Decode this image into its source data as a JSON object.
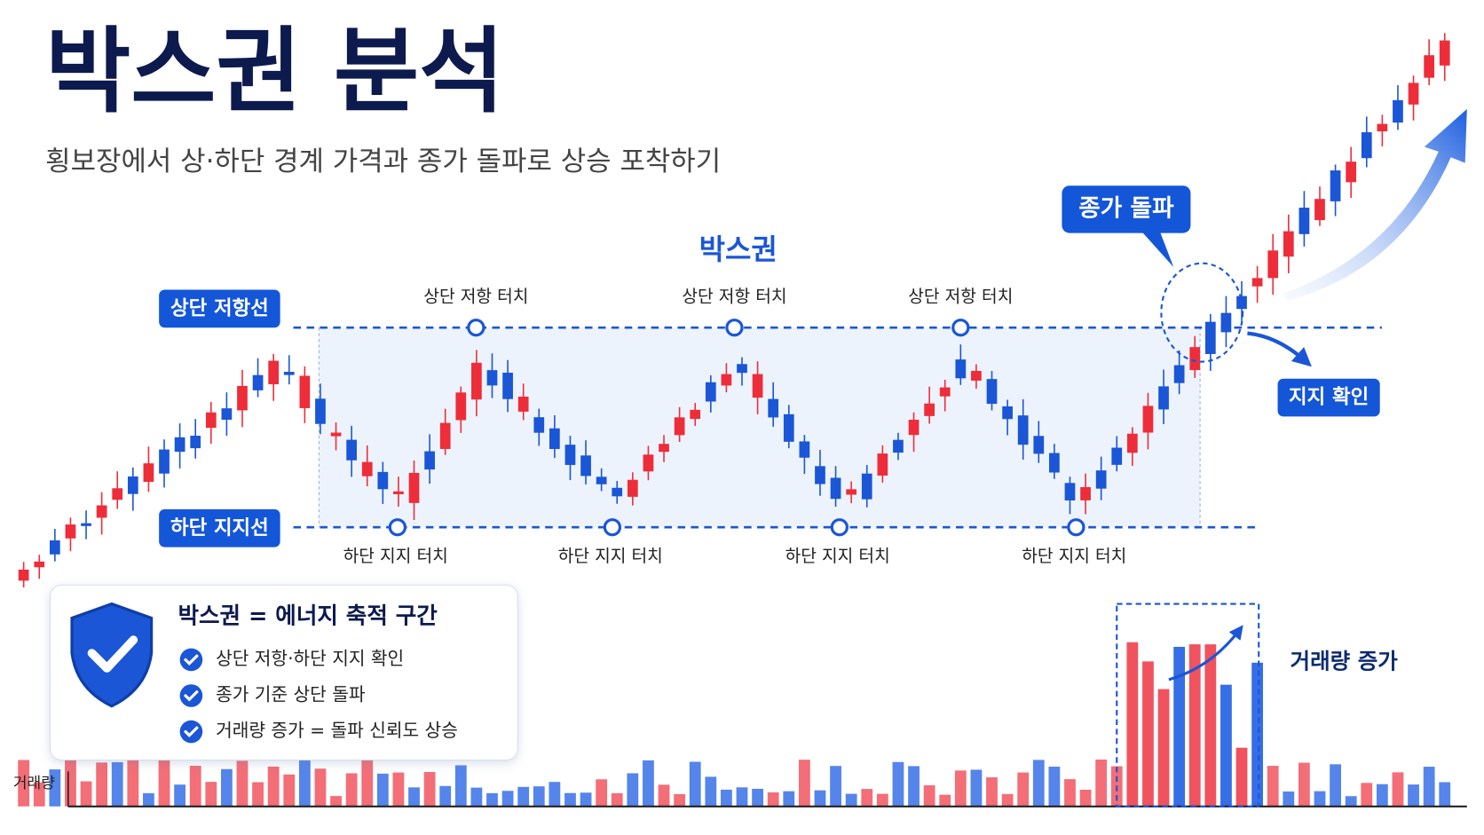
{
  "header": {
    "title": "박스권 분석",
    "subtitle": "횡보장에서 상·하단 경계 가격과 종가 돌파로 상승 포착하기"
  },
  "chart": {
    "box_label": "박스권",
    "resistance_label": "상단 저항선",
    "support_label": "하단 지지선",
    "resistance_touches": [
      "상단 저항 터치",
      "상단 저항 터치",
      "상단 저항 터치"
    ],
    "support_touches": [
      "하단 지지 터치",
      "하단 지지 터치",
      "하단 지지 터치",
      "하단 지지 터치"
    ],
    "breakout_label": "종가 돌파",
    "support_confirm_label": "지지 확인",
    "volume_increase_label": "거래량 증가",
    "volume_axis_label": "거래량"
  },
  "panel": {
    "title": "박스권 = 에너지 축적 구간",
    "items": [
      "상단 저항·하단 지지 확인",
      "종가 기준 상단 돌파",
      "거래량 증가 = 돌파 신뢰도 상승"
    ]
  }
}
